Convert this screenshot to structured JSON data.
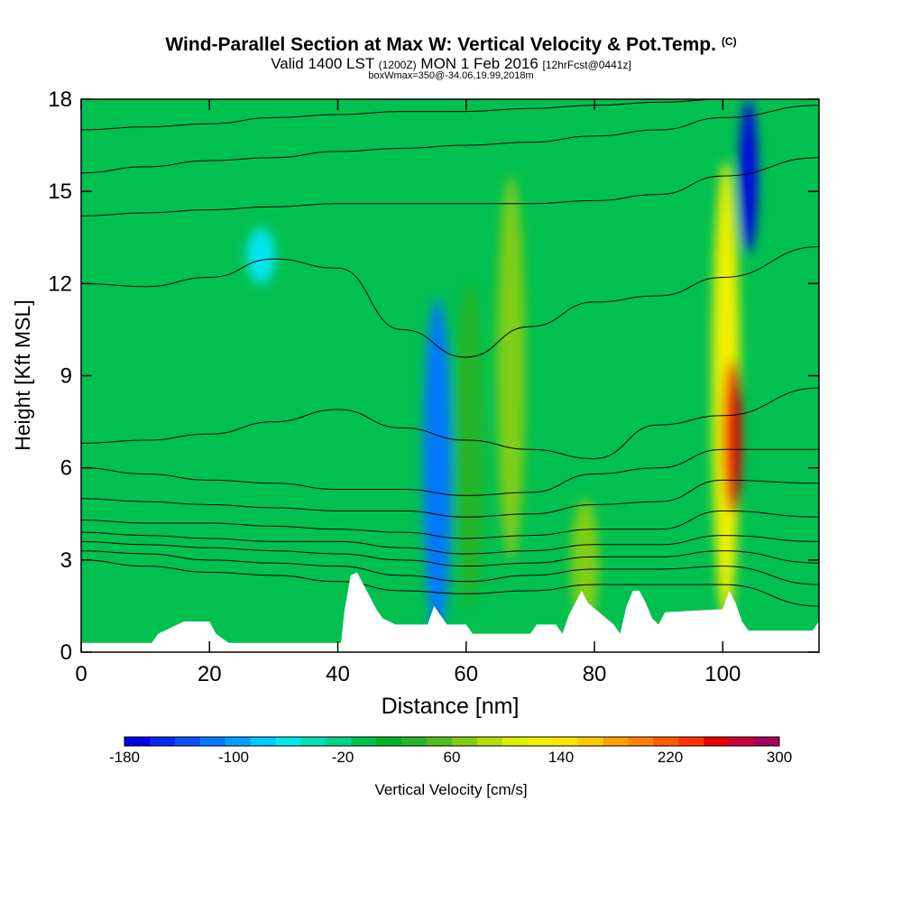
{
  "header": {
    "title": "Wind-Parallel Section at Max W: Vertical Velocity & Pot.Temp.",
    "copyright": "(C)",
    "valid_prefix": "Valid 1400 LST",
    "valid_zulu": "(1200Z)",
    "valid_date": "MON 1 Feb 2016",
    "forecast_info": "[12hrFcst@0441z]",
    "box_info": "boxWmax=350@-34.06,19.99,2018m"
  },
  "chart_data": {
    "type": "heatmap",
    "xlabel": "Distance [nm]",
    "ylabel": "Height [Kft MSL]",
    "xlim": [
      0,
      115
    ],
    "ylim": [
      0,
      18
    ],
    "xticks": [
      0,
      20,
      40,
      60,
      80,
      100
    ],
    "yticks": [
      0,
      3,
      6,
      9,
      12,
      15,
      18
    ],
    "colorbar": {
      "label": "Vertical Velocity [cm/s]",
      "min": -180,
      "max": 300,
      "step": 20,
      "tick_labels": [
        -180,
        -100,
        -20,
        60,
        140,
        220,
        300
      ],
      "colors": [
        "#0000e6",
        "#0a28f0",
        "#0a50fa",
        "#0078ff",
        "#00a0ff",
        "#00c8ff",
        "#00e6f0",
        "#00e0b4",
        "#00d28c",
        "#00c050",
        "#00b428",
        "#28b428",
        "#50be1e",
        "#82cd14",
        "#b4dc0a",
        "#dcf000",
        "#f0f000",
        "#fae600",
        "#ffc800",
        "#ffa000",
        "#ff8200",
        "#ff5a00",
        "#ff3200",
        "#e60000",
        "#c8003c",
        "#a0005a"
      ]
    },
    "vertical_velocity_features": [
      {
        "x": 55.5,
        "y_from": 0.5,
        "y_to": 11.5,
        "w_cm_s": -110
      },
      {
        "x": 60.5,
        "y_from": 1.5,
        "y_to": 12.0,
        "w_cm_s": 40
      },
      {
        "x": 67.0,
        "y_from": 3.0,
        "y_to": 15.5,
        "w_cm_s": 80
      },
      {
        "x": 78.5,
        "y_from": 0.8,
        "y_to": 5.0,
        "w_cm_s": 80
      },
      {
        "x": 100.5,
        "y_from": 1.0,
        "y_to": 16.0,
        "w_cm_s": 140
      },
      {
        "x": 101.5,
        "y_from": 4.5,
        "y_to": 9.5,
        "w_cm_s": 280
      },
      {
        "x": 104.0,
        "y_from": 13.0,
        "y_to": 18.0,
        "w_cm_s": -170
      },
      {
        "x": 28.0,
        "y_from": 12.0,
        "y_to": 13.8,
        "w_cm_s": -50
      }
    ],
    "terrain_kft": {
      "x": [
        0,
        11,
        12,
        16,
        20,
        21,
        23,
        40.5,
        41,
        42,
        43,
        44,
        45,
        46,
        47,
        49,
        54,
        55,
        56,
        57,
        60,
        61,
        70,
        71,
        74,
        75,
        76,
        77,
        78,
        79,
        83,
        84,
        85,
        86,
        87,
        88,
        89,
        90,
        91,
        100,
        101,
        102,
        103,
        104,
        114,
        115
      ],
      "z": [
        0.3,
        0.3,
        0.6,
        1.0,
        1.0,
        0.6,
        0.3,
        0.3,
        1.3,
        2.5,
        2.6,
        2.2,
        1.8,
        1.4,
        1.1,
        0.9,
        0.9,
        1.5,
        1.2,
        0.9,
        0.9,
        0.6,
        0.6,
        0.9,
        0.9,
        0.6,
        1.2,
        1.6,
        2.0,
        1.6,
        0.9,
        0.6,
        1.5,
        2.0,
        2.0,
        1.6,
        1.1,
        0.9,
        1.3,
        1.4,
        2.0,
        1.6,
        1.0,
        0.7,
        0.7,
        1.0
      ]
    },
    "potential_temperature_isentropes_kft": [
      {
        "x": [
          0,
          10,
          20,
          30,
          40,
          50,
          60,
          70,
          80,
          90,
          100,
          115
        ],
        "y": [
          3.0,
          2.8,
          2.6,
          2.5,
          2.3,
          2.0,
          1.9,
          2.0,
          2.2,
          2.2,
          2.2,
          1.5
        ]
      },
      {
        "x": [
          0,
          10,
          20,
          30,
          40,
          50,
          60,
          70,
          80,
          90,
          100,
          115
        ],
        "y": [
          3.3,
          3.2,
          3.0,
          2.9,
          2.8,
          2.5,
          2.3,
          2.5,
          2.7,
          2.7,
          2.8,
          2.2
        ]
      },
      {
        "x": [
          0,
          10,
          20,
          30,
          40,
          50,
          60,
          70,
          80,
          90,
          100,
          115
        ],
        "y": [
          3.6,
          3.5,
          3.4,
          3.3,
          3.2,
          3.0,
          2.8,
          2.9,
          3.1,
          3.1,
          3.3,
          2.9
        ]
      },
      {
        "x": [
          0,
          10,
          20,
          30,
          40,
          50,
          60,
          70,
          80,
          90,
          100,
          115
        ],
        "y": [
          3.9,
          3.8,
          3.7,
          3.6,
          3.6,
          3.4,
          3.2,
          3.3,
          3.5,
          3.5,
          3.8,
          3.6
        ]
      },
      {
        "x": [
          0,
          10,
          20,
          30,
          40,
          50,
          60,
          70,
          80,
          90,
          100,
          115
        ],
        "y": [
          4.3,
          4.2,
          4.2,
          4.1,
          4.0,
          3.9,
          3.7,
          3.8,
          4.0,
          4.0,
          4.6,
          4.4
        ]
      },
      {
        "x": [
          0,
          10,
          20,
          30,
          40,
          50,
          60,
          70,
          80,
          90,
          100,
          115
        ],
        "y": [
          5.0,
          4.9,
          4.8,
          4.7,
          4.6,
          4.6,
          4.4,
          4.5,
          4.8,
          4.9,
          5.6,
          5.5
        ]
      },
      {
        "x": [
          0,
          10,
          20,
          30,
          40,
          50,
          60,
          70,
          80,
          90,
          100,
          115
        ],
        "y": [
          6.0,
          5.8,
          5.6,
          5.5,
          5.3,
          5.3,
          5.1,
          5.2,
          5.8,
          6.0,
          6.6,
          6.6
        ]
      },
      {
        "x": [
          0,
          10,
          20,
          30,
          40,
          50,
          60,
          70,
          80,
          90,
          100,
          115
        ],
        "y": [
          6.8,
          6.9,
          7.1,
          7.5,
          7.9,
          7.3,
          6.9,
          6.6,
          6.3,
          7.4,
          7.7,
          8.6
        ]
      },
      {
        "x": [
          0,
          10,
          20,
          30,
          40,
          50,
          60,
          70,
          80,
          90,
          100,
          115
        ],
        "y": [
          12.0,
          11.9,
          12.2,
          12.8,
          12.5,
          10.5,
          9.6,
          10.6,
          11.4,
          11.6,
          12.2,
          13.2
        ]
      },
      {
        "x": [
          0,
          10,
          20,
          30,
          40,
          50,
          60,
          70,
          80,
          90,
          100,
          115
        ],
        "y": [
          14.2,
          14.3,
          14.4,
          14.5,
          14.6,
          14.6,
          14.6,
          14.6,
          14.7,
          14.9,
          15.5,
          16.1
        ]
      },
      {
        "x": [
          0,
          10,
          20,
          30,
          40,
          50,
          60,
          70,
          80,
          90,
          100,
          115
        ],
        "y": [
          15.6,
          15.8,
          16.0,
          16.1,
          16.3,
          16.4,
          16.5,
          16.6,
          16.8,
          17.0,
          17.4,
          17.8
        ]
      },
      {
        "x": [
          0,
          10,
          20,
          30,
          40,
          50,
          60,
          70,
          80,
          90,
          100,
          115
        ],
        "y": [
          17.0,
          17.1,
          17.2,
          17.4,
          17.5,
          17.6,
          17.6,
          17.7,
          17.8,
          17.9,
          18.0,
          18.0
        ]
      }
    ]
  }
}
